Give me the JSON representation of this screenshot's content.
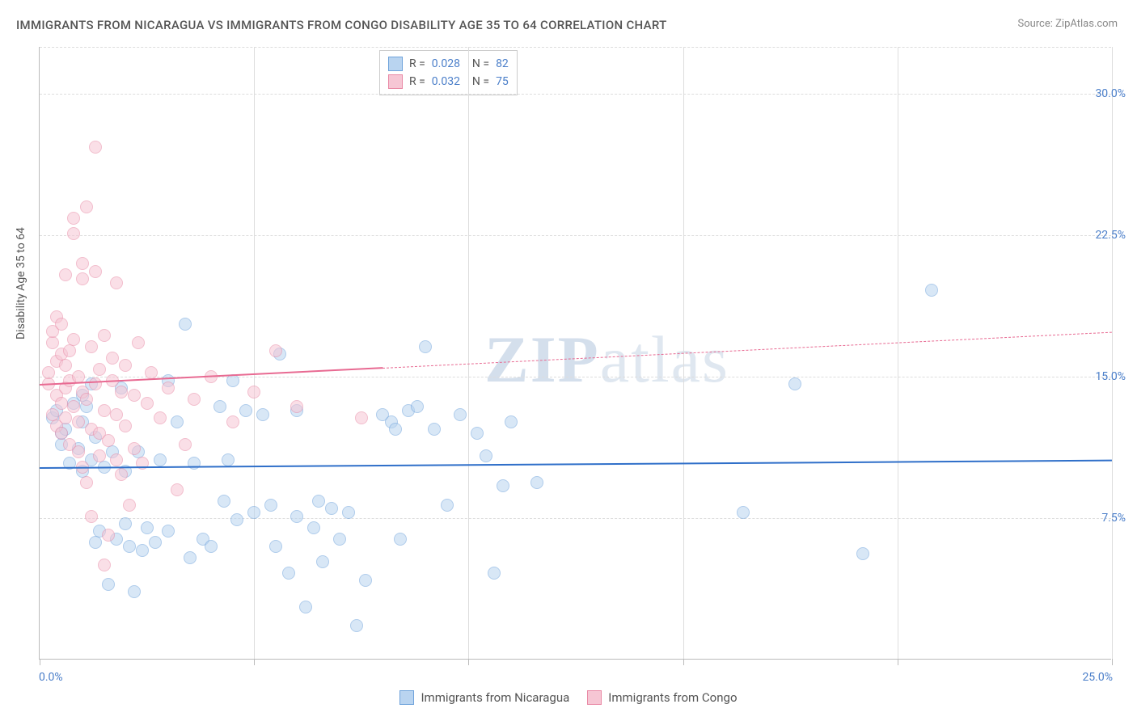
{
  "title": "IMMIGRANTS FROM NICARAGUA VS IMMIGRANTS FROM CONGO DISABILITY AGE 35 TO 64 CORRELATION CHART",
  "source": "Source: ZipAtlas.com",
  "y_axis_label": "Disability Age 35 to 64",
  "watermark": "ZIPatlas",
  "chart": {
    "type": "scatter",
    "background_color": "#ffffff",
    "grid_color": "#dddddd",
    "axis_color": "#bbbbbb",
    "xlim": [
      0,
      25
    ],
    "ylim": [
      0,
      32.5
    ],
    "y_ticks": [
      {
        "v": 7.5,
        "label": "7.5%"
      },
      {
        "v": 15.0,
        "label": "15.0%"
      },
      {
        "v": 22.5,
        "label": "22.5%"
      },
      {
        "v": 30.0,
        "label": "30.0%"
      }
    ],
    "x_ticks": [
      0,
      5,
      10,
      15,
      20,
      25
    ],
    "x_labels": [
      {
        "v": 0,
        "label": "0.0%"
      },
      {
        "v": 25,
        "label": "25.0%"
      }
    ],
    "stats": [
      {
        "swatch_fill": "#b9d4f0",
        "swatch_border": "#6fa3db",
        "r": "0.028",
        "n": "82"
      },
      {
        "swatch_fill": "#f6c6d4",
        "swatch_border": "#e98aa6",
        "r": "0.032",
        "n": "75"
      }
    ],
    "legend_bottom": [
      {
        "swatch_fill": "#b9d4f0",
        "swatch_border": "#6fa3db",
        "label": "Immigrants from Nicaragua"
      },
      {
        "swatch_fill": "#f6c6d4",
        "swatch_border": "#e98aa6",
        "label": "Immigrants from Congo"
      }
    ],
    "series": [
      {
        "name": "nicaragua",
        "fill": "#b9d4f0",
        "stroke": "#6fa3db",
        "trend_color": "#2f6fc9",
        "trend_y0": 10.2,
        "trend_y1": 10.6,
        "points": [
          [
            0.3,
            12.8
          ],
          [
            0.4,
            13.2
          ],
          [
            0.5,
            12.0
          ],
          [
            0.5,
            11.4
          ],
          [
            0.6,
            12.2
          ],
          [
            0.7,
            10.4
          ],
          [
            0.8,
            13.6
          ],
          [
            0.9,
            11.2
          ],
          [
            1.0,
            10.0
          ],
          [
            1.0,
            12.6
          ],
          [
            1.1,
            13.4
          ],
          [
            1.2,
            14.6
          ],
          [
            1.2,
            10.6
          ],
          [
            1.3,
            11.8
          ],
          [
            1.4,
            6.8
          ],
          [
            1.5,
            10.2
          ],
          [
            1.6,
            4.0
          ],
          [
            1.7,
            11.0
          ],
          [
            1.8,
            6.4
          ],
          [
            1.9,
            14.4
          ],
          [
            2.0,
            10.0
          ],
          [
            2.1,
            6.0
          ],
          [
            2.2,
            3.6
          ],
          [
            2.3,
            11.0
          ],
          [
            2.4,
            5.8
          ],
          [
            2.5,
            7.0
          ],
          [
            2.7,
            6.2
          ],
          [
            2.8,
            10.6
          ],
          [
            3.0,
            6.8
          ],
          [
            3.0,
            14.8
          ],
          [
            3.2,
            12.6
          ],
          [
            3.4,
            17.8
          ],
          [
            3.6,
            10.4
          ],
          [
            3.8,
            6.4
          ],
          [
            4.0,
            6.0
          ],
          [
            4.2,
            13.4
          ],
          [
            4.4,
            10.6
          ],
          [
            4.5,
            14.8
          ],
          [
            4.6,
            7.4
          ],
          [
            4.8,
            13.2
          ],
          [
            5.0,
            7.8
          ],
          [
            5.2,
            13.0
          ],
          [
            5.4,
            8.2
          ],
          [
            5.6,
            16.2
          ],
          [
            5.8,
            4.6
          ],
          [
            6.0,
            7.6
          ],
          [
            6.2,
            2.8
          ],
          [
            6.4,
            7.0
          ],
          [
            6.6,
            5.2
          ],
          [
            6.8,
            8.0
          ],
          [
            7.0,
            6.4
          ],
          [
            7.2,
            7.8
          ],
          [
            7.4,
            1.8
          ],
          [
            7.6,
            4.2
          ],
          [
            8.0,
            13.0
          ],
          [
            8.2,
            12.6
          ],
          [
            8.3,
            12.2
          ],
          [
            8.4,
            6.4
          ],
          [
            8.6,
            13.2
          ],
          [
            8.8,
            13.4
          ],
          [
            9.0,
            16.6
          ],
          [
            9.2,
            12.2
          ],
          [
            9.8,
            13.0
          ],
          [
            10.2,
            12.0
          ],
          [
            10.4,
            10.8
          ],
          [
            10.6,
            4.6
          ],
          [
            10.8,
            9.2
          ],
          [
            11.0,
            12.6
          ],
          [
            11.6,
            9.4
          ],
          [
            16.4,
            7.8
          ],
          [
            17.6,
            14.6
          ],
          [
            19.2,
            5.6
          ],
          [
            20.8,
            19.6
          ],
          [
            1.0,
            14.0
          ],
          [
            1.3,
            6.2
          ],
          [
            2.0,
            7.2
          ],
          [
            3.5,
            5.4
          ],
          [
            4.3,
            8.4
          ],
          [
            5.5,
            6.0
          ],
          [
            6.0,
            13.2
          ],
          [
            6.5,
            8.4
          ],
          [
            9.5,
            8.2
          ]
        ]
      },
      {
        "name": "congo",
        "fill": "#f6c6d4",
        "stroke": "#e98aa6",
        "trend_color": "#e86a92",
        "trend_y0": 14.6,
        "trend_solid_until_x": 8.0,
        "trend_y1": 17.4,
        "points": [
          [
            0.2,
            14.6
          ],
          [
            0.2,
            15.2
          ],
          [
            0.3,
            13.0
          ],
          [
            0.3,
            16.8
          ],
          [
            0.3,
            17.4
          ],
          [
            0.4,
            12.4
          ],
          [
            0.4,
            15.8
          ],
          [
            0.4,
            18.2
          ],
          [
            0.4,
            14.0
          ],
          [
            0.5,
            16.2
          ],
          [
            0.5,
            17.8
          ],
          [
            0.5,
            12.0
          ],
          [
            0.5,
            13.6
          ],
          [
            0.6,
            14.4
          ],
          [
            0.6,
            15.6
          ],
          [
            0.6,
            12.8
          ],
          [
            0.6,
            20.4
          ],
          [
            0.7,
            16.4
          ],
          [
            0.7,
            14.8
          ],
          [
            0.7,
            11.4
          ],
          [
            0.8,
            13.4
          ],
          [
            0.8,
            17.0
          ],
          [
            0.8,
            22.6
          ],
          [
            0.8,
            23.4
          ],
          [
            0.9,
            15.0
          ],
          [
            0.9,
            11.0
          ],
          [
            0.9,
            12.6
          ],
          [
            1.0,
            21.0
          ],
          [
            1.0,
            20.2
          ],
          [
            1.0,
            14.2
          ],
          [
            1.0,
            10.2
          ],
          [
            1.1,
            24.0
          ],
          [
            1.1,
            13.8
          ],
          [
            1.1,
            9.4
          ],
          [
            1.2,
            16.6
          ],
          [
            1.2,
            12.2
          ],
          [
            1.2,
            7.6
          ],
          [
            1.3,
            20.6
          ],
          [
            1.3,
            14.6
          ],
          [
            1.3,
            27.2
          ],
          [
            1.4,
            15.4
          ],
          [
            1.4,
            10.8
          ],
          [
            1.4,
            12.0
          ],
          [
            1.5,
            5.0
          ],
          [
            1.5,
            13.2
          ],
          [
            1.5,
            17.2
          ],
          [
            1.6,
            11.6
          ],
          [
            1.6,
            6.6
          ],
          [
            1.7,
            14.8
          ],
          [
            1.7,
            16.0
          ],
          [
            1.8,
            10.6
          ],
          [
            1.8,
            13.0
          ],
          [
            1.8,
            20.0
          ],
          [
            1.9,
            14.2
          ],
          [
            1.9,
            9.8
          ],
          [
            2.0,
            15.6
          ],
          [
            2.0,
            12.4
          ],
          [
            2.1,
            8.2
          ],
          [
            2.2,
            11.2
          ],
          [
            2.2,
            14.0
          ],
          [
            2.3,
            16.8
          ],
          [
            2.4,
            10.4
          ],
          [
            2.5,
            13.6
          ],
          [
            2.6,
            15.2
          ],
          [
            2.8,
            12.8
          ],
          [
            3.0,
            14.4
          ],
          [
            3.2,
            9.0
          ],
          [
            3.4,
            11.4
          ],
          [
            3.6,
            13.8
          ],
          [
            4.0,
            15.0
          ],
          [
            4.5,
            12.6
          ],
          [
            5.0,
            14.2
          ],
          [
            5.5,
            16.4
          ],
          [
            6.0,
            13.4
          ],
          [
            7.5,
            12.8
          ]
        ]
      }
    ]
  }
}
